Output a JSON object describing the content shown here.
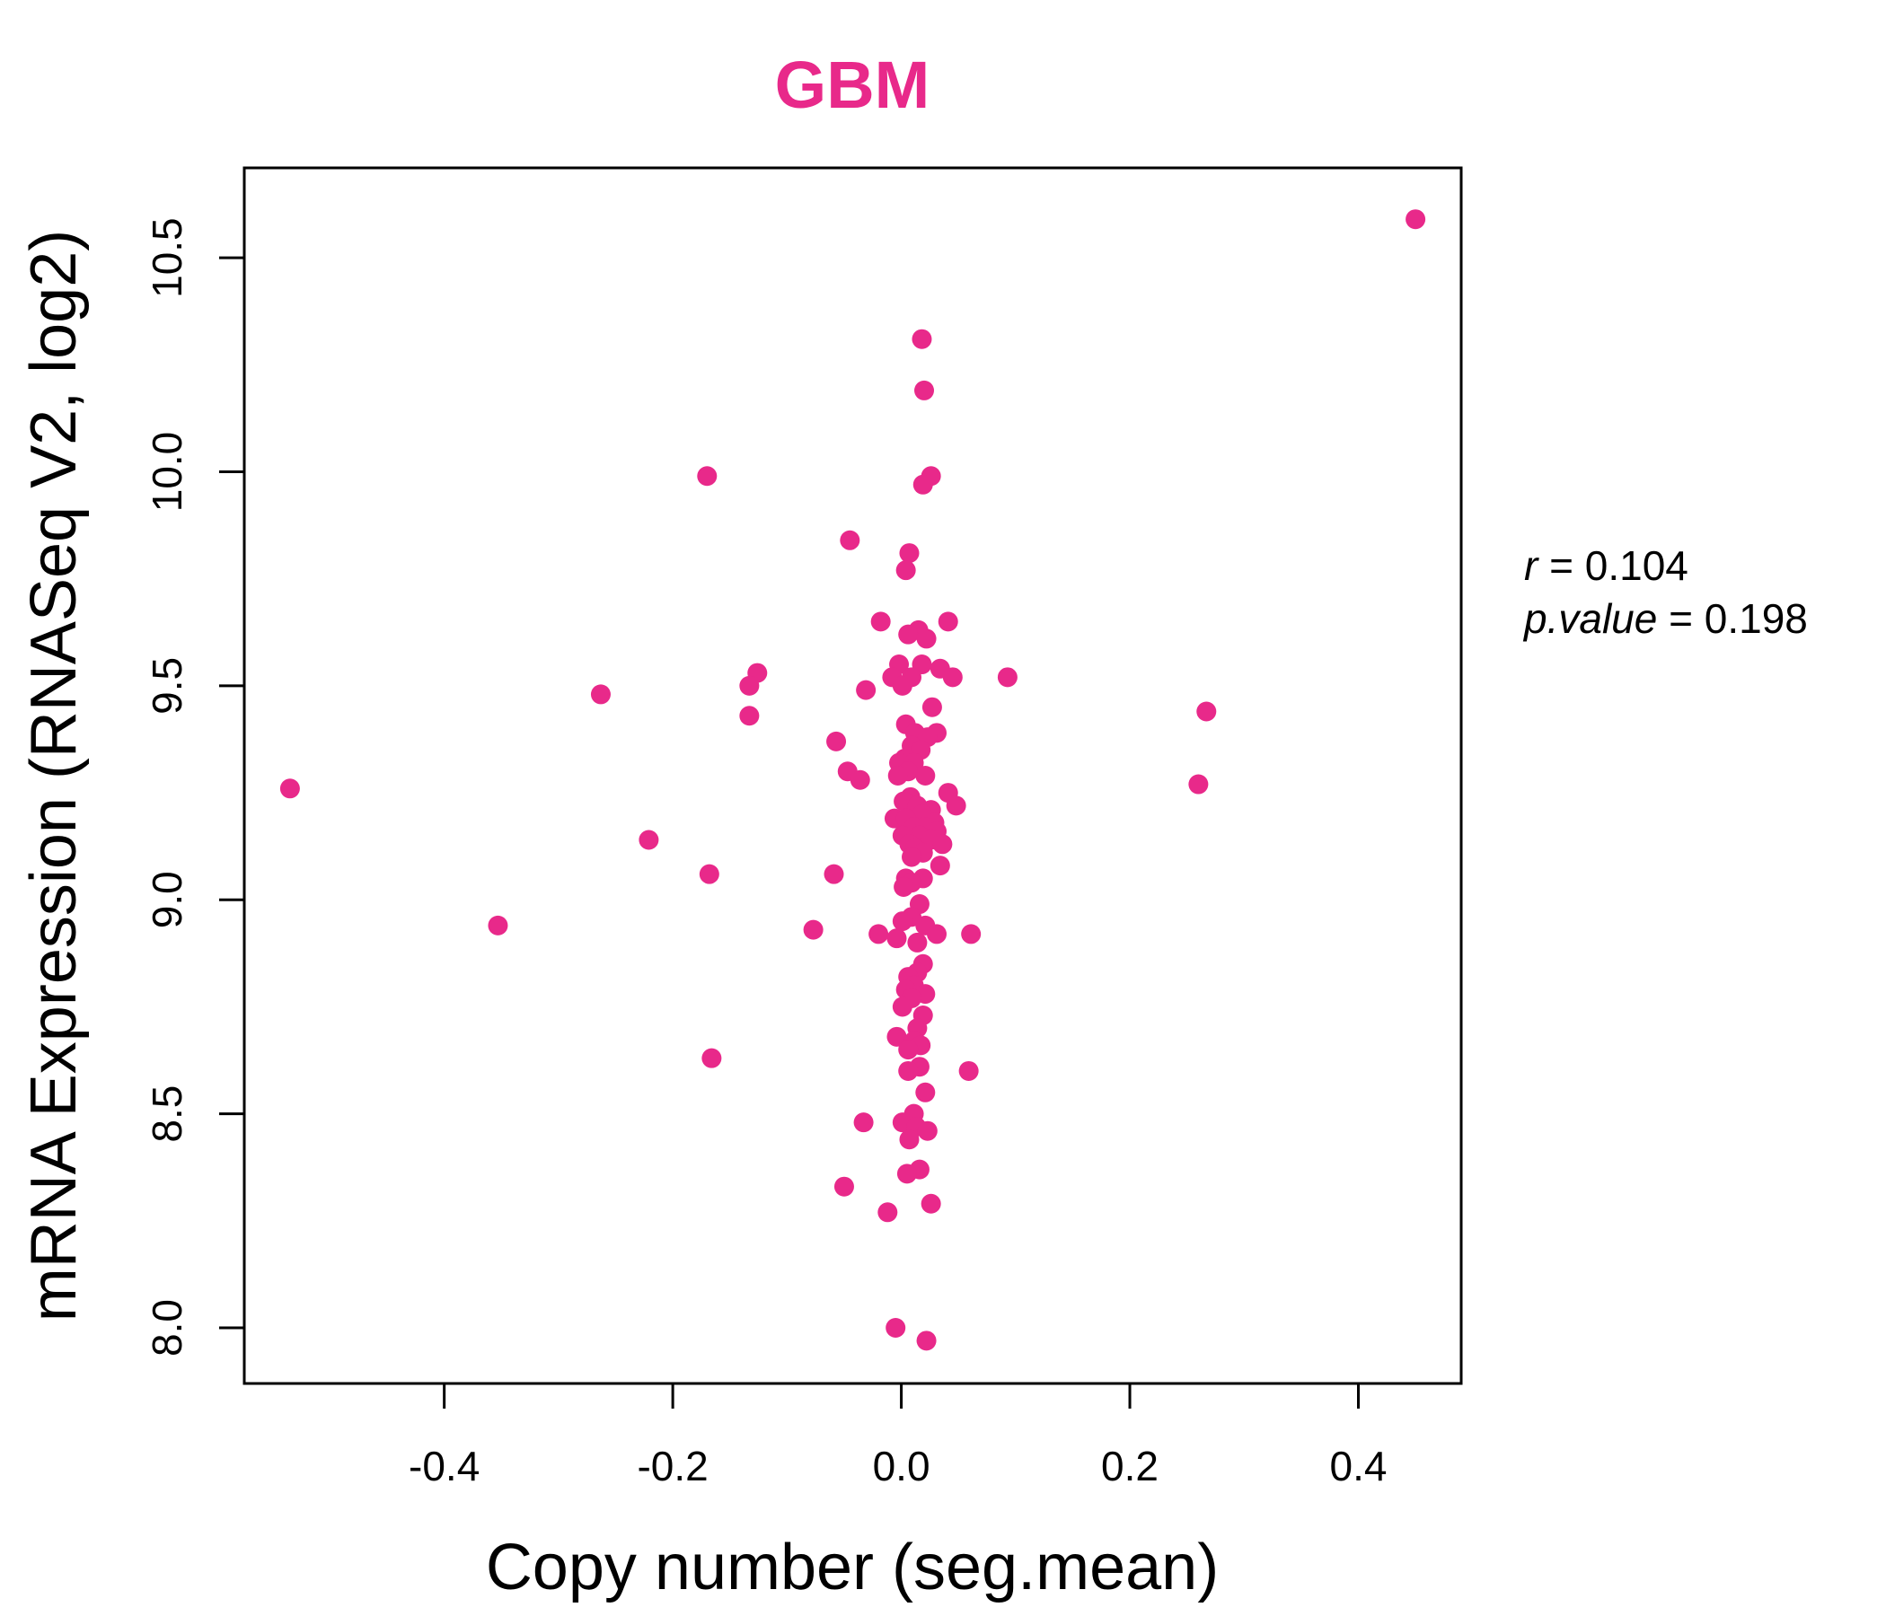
{
  "colors": {
    "accent": "#E8298A",
    "axis": "#000000",
    "background": "#FFFFFF"
  },
  "chart_data": {
    "type": "scatter",
    "title": "GBM",
    "xlabel": "Copy number (seg.mean)",
    "ylabel": "mRNA Expression (RNASeq V2, log2)",
    "xlim": [
      -0.575,
      0.49
    ],
    "ylim": [
      7.87,
      10.71
    ],
    "xticks": [
      -0.4,
      -0.2,
      0.0,
      0.2,
      0.4
    ],
    "xtick_labels": [
      "-0.4",
      "-0.2",
      "0.0",
      "0.2",
      "0.4"
    ],
    "yticks": [
      8.0,
      8.5,
      9.0,
      9.5,
      10.0,
      10.5
    ],
    "ytick_labels": [
      "8.0",
      "8.5",
      "9.0",
      "9.5",
      "10.0",
      "10.5"
    ],
    "grid": false,
    "stats": {
      "r_label": "r",
      "r_value": "0.104",
      "p_label": "p.value",
      "p_value": "0.198",
      "equals": "="
    },
    "points": [
      {
        "x": 0.45,
        "y": 10.59
      },
      {
        "x": 0.018,
        "y": 10.31
      },
      {
        "x": 0.02,
        "y": 10.19
      },
      {
        "x": -0.17,
        "y": 9.99
      },
      {
        "x": 0.026,
        "y": 9.99
      },
      {
        "x": 0.019,
        "y": 9.97
      },
      {
        "x": -0.045,
        "y": 9.84
      },
      {
        "x": 0.007,
        "y": 9.81
      },
      {
        "x": 0.004,
        "y": 9.77
      },
      {
        "x": -0.018,
        "y": 9.65
      },
      {
        "x": 0.041,
        "y": 9.65
      },
      {
        "x": 0.015,
        "y": 9.63
      },
      {
        "x": 0.006,
        "y": 9.62
      },
      {
        "x": 0.022,
        "y": 9.61
      },
      {
        "x": -0.002,
        "y": 9.55
      },
      {
        "x": 0.018,
        "y": 9.55
      },
      {
        "x": 0.034,
        "y": 9.54
      },
      {
        "x": -0.126,
        "y": 9.53
      },
      {
        "x": 0.093,
        "y": 9.52
      },
      {
        "x": -0.008,
        "y": 9.52
      },
      {
        "x": 0.009,
        "y": 9.52
      },
      {
        "x": 0.045,
        "y": 9.52
      },
      {
        "x": -0.133,
        "y": 9.5
      },
      {
        "x": 0.001,
        "y": 9.5
      },
      {
        "x": -0.031,
        "y": 9.49
      },
      {
        "x": -0.263,
        "y": 9.48
      },
      {
        "x": 0.027,
        "y": 9.45
      },
      {
        "x": 0.267,
        "y": 9.44
      },
      {
        "x": -0.133,
        "y": 9.43
      },
      {
        "x": 0.004,
        "y": 9.41
      },
      {
        "x": 0.012,
        "y": 9.39
      },
      {
        "x": 0.031,
        "y": 9.39
      },
      {
        "x": 0.023,
        "y": 9.38
      },
      {
        "x": -0.057,
        "y": 9.37
      },
      {
        "x": 0.009,
        "y": 9.36
      },
      {
        "x": 0.017,
        "y": 9.35
      },
      {
        "x": 0.003,
        "y": 9.33
      },
      {
        "x": 0.011,
        "y": 9.32
      },
      {
        "x": -0.002,
        "y": 9.32
      },
      {
        "x": -0.047,
        "y": 9.3
      },
      {
        "x": 0.006,
        "y": 9.3
      },
      {
        "x": -0.003,
        "y": 9.29
      },
      {
        "x": 0.021,
        "y": 9.29
      },
      {
        "x": -0.036,
        "y": 9.28
      },
      {
        "x": 0.26,
        "y": 9.27
      },
      {
        "x": -0.535,
        "y": 9.26
      },
      {
        "x": 0.041,
        "y": 9.25
      },
      {
        "x": 0.008,
        "y": 9.24
      },
      {
        "x": 0.002,
        "y": 9.23
      },
      {
        "x": 0.048,
        "y": 9.22
      },
      {
        "x": 0.014,
        "y": 9.22
      },
      {
        "x": 0.026,
        "y": 9.21
      },
      {
        "x": 0.018,
        "y": 9.2
      },
      {
        "x": -0.006,
        "y": 9.19
      },
      {
        "x": 0.004,
        "y": 9.19
      },
      {
        "x": 0.029,
        "y": 9.18
      },
      {
        "x": 0.011,
        "y": 9.17
      },
      {
        "x": 0.021,
        "y": 9.17
      },
      {
        "x": 0.031,
        "y": 9.16
      },
      {
        "x": 0.016,
        "y": 9.15
      },
      {
        "x": 0.001,
        "y": 9.15
      },
      {
        "x": 0.026,
        "y": 9.14
      },
      {
        "x": -0.221,
        "y": 9.14
      },
      {
        "x": 0.007,
        "y": 9.13
      },
      {
        "x": 0.036,
        "y": 9.13
      },
      {
        "x": 0.012,
        "y": 9.12
      },
      {
        "x": 0.019,
        "y": 9.11
      },
      {
        "x": 0.009,
        "y": 9.1
      },
      {
        "x": 0.034,
        "y": 9.08
      },
      {
        "x": -0.168,
        "y": 9.06
      },
      {
        "x": -0.059,
        "y": 9.06
      },
      {
        "x": 0.004,
        "y": 9.05
      },
      {
        "x": 0.019,
        "y": 9.05
      },
      {
        "x": 0.009,
        "y": 9.04
      },
      {
        "x": 0.002,
        "y": 9.03
      },
      {
        "x": 0.016,
        "y": 8.99
      },
      {
        "x": 0.009,
        "y": 8.96
      },
      {
        "x": 0.001,
        "y": 8.95
      },
      {
        "x": -0.353,
        "y": 8.94
      },
      {
        "x": 0.021,
        "y": 8.94
      },
      {
        "x": -0.077,
        "y": 8.93
      },
      {
        "x": 0.031,
        "y": 8.92
      },
      {
        "x": 0.061,
        "y": 8.92
      },
      {
        "x": -0.02,
        "y": 8.92
      },
      {
        "x": -0.004,
        "y": 8.91
      },
      {
        "x": 0.014,
        "y": 8.9
      },
      {
        "x": 0.019,
        "y": 8.85
      },
      {
        "x": 0.014,
        "y": 8.83
      },
      {
        "x": 0.006,
        "y": 8.82
      },
      {
        "x": 0.011,
        "y": 8.8
      },
      {
        "x": 0.004,
        "y": 8.79
      },
      {
        "x": 0.021,
        "y": 8.78
      },
      {
        "x": 0.009,
        "y": 8.77
      },
      {
        "x": 0.001,
        "y": 8.75
      },
      {
        "x": 0.019,
        "y": 8.73
      },
      {
        "x": 0.014,
        "y": 8.7
      },
      {
        "x": -0.004,
        "y": 8.68
      },
      {
        "x": 0.011,
        "y": 8.67
      },
      {
        "x": 0.017,
        "y": 8.66
      },
      {
        "x": 0.006,
        "y": 8.65
      },
      {
        "x": -0.166,
        "y": 8.63
      },
      {
        "x": 0.016,
        "y": 8.61
      },
      {
        "x": 0.006,
        "y": 8.6
      },
      {
        "x": 0.059,
        "y": 8.6
      },
      {
        "x": 0.021,
        "y": 8.55
      },
      {
        "x": 0.011,
        "y": 8.5
      },
      {
        "x": -0.033,
        "y": 8.48
      },
      {
        "x": 0.001,
        "y": 8.48
      },
      {
        "x": 0.013,
        "y": 8.47
      },
      {
        "x": 0.023,
        "y": 8.46
      },
      {
        "x": 0.007,
        "y": 8.44
      },
      {
        "x": 0.016,
        "y": 8.37
      },
      {
        "x": 0.005,
        "y": 8.36
      },
      {
        "x": -0.05,
        "y": 8.33
      },
      {
        "x": 0.026,
        "y": 8.29
      },
      {
        "x": -0.012,
        "y": 8.27
      },
      {
        "x": -0.005,
        "y": 8.0
      },
      {
        "x": 0.022,
        "y": 7.97
      }
    ]
  }
}
